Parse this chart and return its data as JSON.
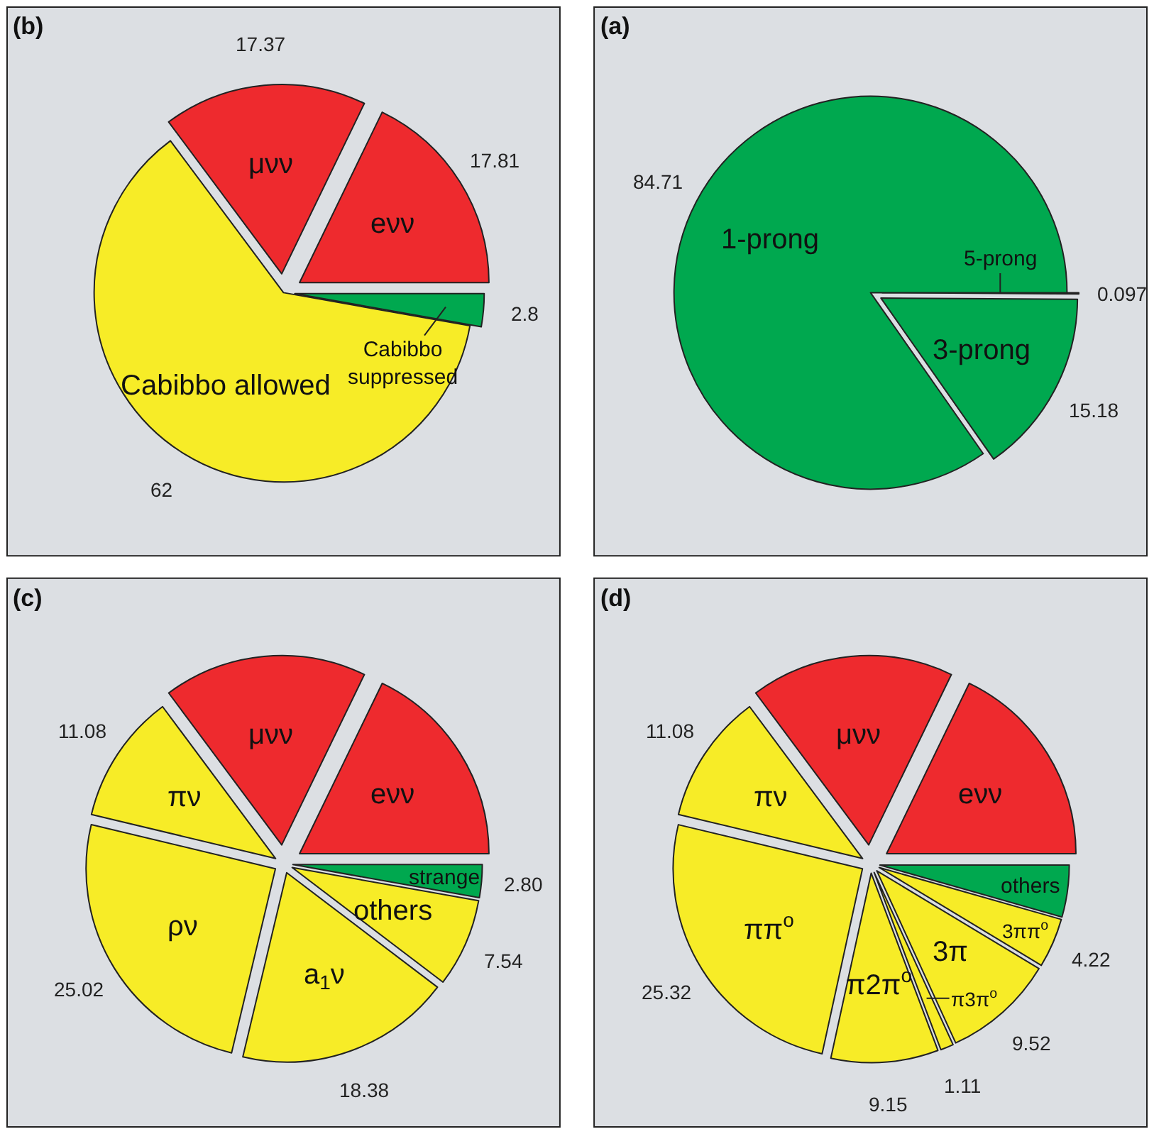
{
  "chart_data": [
    {
      "type": "pie",
      "title": "(b)",
      "categories": [
        "Cabibbo suppressed",
        "Cabibbo allowed",
        "μνν",
        "eνν"
      ],
      "values": [
        2.8,
        62,
        17.37,
        17.81
      ],
      "colors": [
        "#00a84f",
        "#f7ec27",
        "#ee2a2e",
        "#ee2a2e"
      ],
      "value_labels": [
        "2.8",
        "62",
        "17.37",
        "17.81"
      ]
    },
    {
      "type": "pie",
      "title": "(a)",
      "categories": [
        "5-prong",
        "3-prong",
        "1-prong"
      ],
      "values": [
        0.097,
        15.18,
        84.71
      ],
      "colors": [
        "#00a84f",
        "#00a84f",
        "#00a84f"
      ],
      "value_labels": [
        "0.097",
        "15.18",
        "84.71"
      ]
    },
    {
      "type": "pie",
      "title": "(c)",
      "categories": [
        "strange",
        "others",
        "a$_{1}$ν",
        "ρν",
        "πν",
        "μνν",
        "eνν"
      ],
      "values": [
        2.8,
        7.54,
        18.38,
        25.02,
        11.08,
        17.37,
        17.81
      ],
      "colors": [
        "#00a84f",
        "#f7ec27",
        "#f7ec27",
        "#f7ec27",
        "#f7ec27",
        "#ee2a2e",
        "#ee2a2e"
      ],
      "value_labels": [
        "2.80",
        "7.54",
        "18.38",
        "25.02",
        "11.08",
        null,
        null
      ]
    },
    {
      "type": "pie",
      "title": "(d)",
      "categories": [
        "others",
        "3ππ$^{o}$",
        "3π",
        "π3π$^{o}$",
        "π2π$^{o}$",
        "ππ$^{o}$",
        "πν",
        "μνν",
        "eνν"
      ],
      "values": [
        4.42,
        4.22,
        9.52,
        1.11,
        9.15,
        25.32,
        11.08,
        17.37,
        17.81
      ],
      "colors": [
        "#00a84f",
        "#f7ec27",
        "#f7ec27",
        "#f7ec27",
        "#f7ec27",
        "#f7ec27",
        "#f7ec27",
        "#ee2a2e",
        "#ee2a2e"
      ],
      "value_labels": [
        null,
        "4.22",
        "9.52",
        "1.11",
        "9.15",
        "25.32",
        "11.08",
        null,
        null
      ]
    }
  ]
}
